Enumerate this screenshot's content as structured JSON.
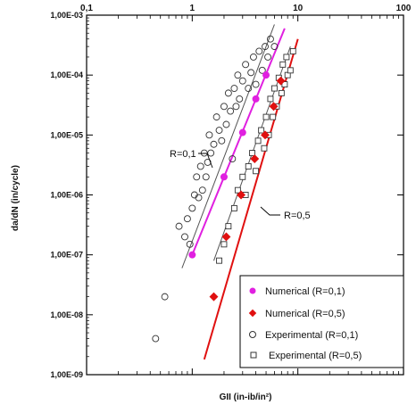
{
  "chart_data": {
    "type": "scatter",
    "xscale": "log",
    "yscale": "log",
    "xlim": [
      0.1,
      100
    ],
    "ylim": [
      1e-09,
      0.001
    ],
    "xlabel": "GII (in-ib/in²)",
    "ylabel": "da/dN (in/cycle)",
    "x_ticks": [
      "0,1",
      "1",
      "10",
      "100"
    ],
    "y_ticks": [
      "1,00E-09",
      "1,00E-08",
      "1,00E-07",
      "1,00E-06",
      "1,00E-05",
      "1,00E-04",
      "1,00E-03"
    ],
    "grid": false,
    "legend_position": "bottom-right",
    "annotations": [
      {
        "text": "R=0,1",
        "x": 1.2,
        "y": 8e-06
      },
      {
        "text": "R=0,5",
        "x": 6.2,
        "y": 7e-07
      }
    ],
    "series": [
      {
        "name": "Numerical (R=0,1)",
        "marker": "circle-filled",
        "color": "#e020e0",
        "points": [
          [
            1.0,
            1e-07
          ],
          [
            2.0,
            2e-06
          ],
          [
            3.0,
            1.1e-05
          ],
          [
            4.0,
            4e-05
          ],
          [
            5.0,
            0.0001
          ]
        ]
      },
      {
        "name": "Numerical (R=0,5)",
        "marker": "diamond-filled",
        "color": "#e01010",
        "points": [
          [
            1.6,
            2e-08
          ],
          [
            2.1,
            2e-07
          ],
          [
            2.9,
            1e-06
          ],
          [
            3.9,
            4e-06
          ],
          [
            4.9,
            1e-05
          ],
          [
            5.9,
            3e-05
          ],
          [
            6.9,
            8e-05
          ]
        ]
      },
      {
        "name": "Experimental (R=0,1)",
        "marker": "circle-open",
        "color": "#333333",
        "points": [
          [
            0.45,
            4e-09
          ],
          [
            0.55,
            2e-08
          ],
          [
            0.75,
            3e-07
          ],
          [
            0.85,
            2e-07
          ],
          [
            0.9,
            4e-07
          ],
          [
            0.95,
            1.5e-07
          ],
          [
            1.0,
            6e-07
          ],
          [
            1.05,
            1e-06
          ],
          [
            1.1,
            2e-06
          ],
          [
            1.15,
            9e-07
          ],
          [
            1.2,
            3e-06
          ],
          [
            1.25,
            1.2e-06
          ],
          [
            1.3,
            5e-06
          ],
          [
            1.35,
            2e-06
          ],
          [
            1.4,
            3.5e-06
          ],
          [
            1.45,
            1e-05
          ],
          [
            1.5,
            5e-06
          ],
          [
            1.6,
            7e-06
          ],
          [
            1.7,
            2e-05
          ],
          [
            1.8,
            1.2e-05
          ],
          [
            1.9,
            8e-06
          ],
          [
            2.0,
            3e-05
          ],
          [
            2.1,
            1.5e-05
          ],
          [
            2.2,
            5e-05
          ],
          [
            2.3,
            2.5e-05
          ],
          [
            2.4,
            4e-06
          ],
          [
            2.5,
            6e-05
          ],
          [
            2.6,
            3e-05
          ],
          [
            2.7,
            0.0001
          ],
          [
            2.8,
            4e-05
          ],
          [
            3.0,
            8e-05
          ],
          [
            3.2,
            0.00015
          ],
          [
            3.4,
            6e-05
          ],
          [
            3.6,
            0.00011
          ],
          [
            3.8,
            0.0002
          ],
          [
            4.0,
            7e-05
          ],
          [
            4.3,
            0.00025
          ],
          [
            4.6,
            0.00012
          ],
          [
            4.9,
            0.0003
          ],
          [
            5.2,
            0.0002
          ],
          [
            5.5,
            0.0004
          ],
          [
            6.0,
            0.0003
          ]
        ]
      },
      {
        "name": "Experimental (R=0,5)",
        "marker": "square-open",
        "color": "#333333",
        "points": [
          [
            1.8,
            8e-08
          ],
          [
            2.0,
            1.5e-07
          ],
          [
            2.2,
            3e-07
          ],
          [
            2.5,
            6e-07
          ],
          [
            2.7,
            1.2e-06
          ],
          [
            3.0,
            2e-06
          ],
          [
            3.2,
            1e-06
          ],
          [
            3.4,
            3e-06
          ],
          [
            3.7,
            5e-06
          ],
          [
            4.0,
            2.5e-06
          ],
          [
            4.2,
            8e-06
          ],
          [
            4.5,
            1.2e-05
          ],
          [
            4.8,
            6e-06
          ],
          [
            5.0,
            2e-05
          ],
          [
            5.3,
            1e-05
          ],
          [
            5.5,
            4e-05
          ],
          [
            5.8,
            2e-05
          ],
          [
            6.0,
            6e-05
          ],
          [
            6.3,
            3e-05
          ],
          [
            6.6,
            9e-05
          ],
          [
            7.0,
            5e-05
          ],
          [
            7.2,
            0.00015
          ],
          [
            7.5,
            7e-05
          ],
          [
            7.8,
            0.0002
          ],
          [
            8.0,
            0.0001
          ],
          [
            8.5,
            0.00012
          ],
          [
            9.0,
            0.00025
          ]
        ]
      }
    ],
    "fit_lines": [
      {
        "series": "R=0,1",
        "color": "#e020e0",
        "from": [
          1.0,
          1e-07
        ],
        "to": [
          7.5,
          0.0006
        ]
      },
      {
        "series": "R=0,5",
        "color": "#e01010",
        "from": [
          1.3,
          1.8e-09
        ],
        "to": [
          10.0,
          0.0004
        ]
      },
      {
        "series": "R=0,1 (experimental band)",
        "color": "#555555",
        "from": [
          0.8,
          6e-08
        ],
        "to": [
          6.0,
          0.0007
        ]
      },
      {
        "series": "R=0,5 (experimental band)",
        "color": "#555555",
        "from": [
          1.6,
          8e-08
        ],
        "to": [
          8.5,
          0.0003
        ]
      }
    ]
  }
}
